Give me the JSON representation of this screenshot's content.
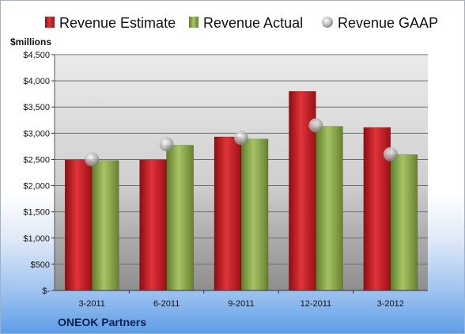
{
  "chart_data": {
    "type": "bar",
    "ylabel": "$millions",
    "ylim": [
      0,
      4500
    ],
    "yticks": [
      0,
      500,
      1000,
      1500,
      2000,
      2500,
      3000,
      3500,
      4000,
      4500
    ],
    "ytick_labels": [
      "$-",
      "$500",
      "$1,000",
      "$1,500",
      "$2,000",
      "$2,500",
      "$3,000",
      "$3,500",
      "$4,000",
      "$4,500"
    ],
    "categories": [
      "3-2011",
      "6-2011",
      "9-2011",
      "12-2011",
      "3-2012"
    ],
    "grid": true,
    "legend_position": "top",
    "series": [
      {
        "name": "Revenue Estimate",
        "kind": "bar",
        "color": "#c8141c",
        "values": [
          2490,
          2490,
          2930,
          3800,
          3110
        ]
      },
      {
        "name": "Revenue Actual",
        "kind": "bar",
        "color": "#8aab45",
        "values": [
          2480,
          2770,
          2890,
          3130,
          2590
        ]
      },
      {
        "name": "Revenue GAAP",
        "kind": "marker",
        "color": "#b8b8b8",
        "values": [
          2500,
          2790,
          2910,
          3150,
          2600
        ]
      }
    ]
  },
  "footer": {
    "company": "ONEOK Partners"
  }
}
